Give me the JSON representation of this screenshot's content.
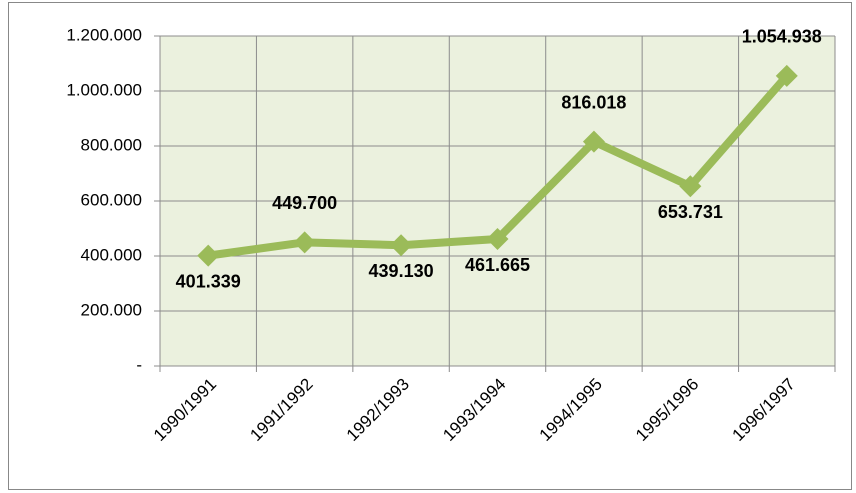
{
  "chart_data": {
    "type": "line",
    "categories": [
      "1990/1991",
      "1991/1992",
      "1992/1993",
      "1993/1994",
      "1994/1995",
      "1995/1996",
      "1996/1997"
    ],
    "values": [
      401339,
      449700,
      439130,
      461665,
      816018,
      653731,
      1054938
    ],
    "value_labels": [
      "401.339",
      "449.700",
      "439.130",
      "461.665",
      "816.018",
      "653.731",
      "1.054.938"
    ],
    "color": "#9bbb59",
    "ylim": [
      0,
      1200000
    ],
    "yticks": [
      {
        "value": 0,
        "label": "-"
      },
      {
        "value": 200000,
        "label": "200.000"
      },
      {
        "value": 400000,
        "label": "400.000"
      },
      {
        "value": 600000,
        "label": "600.000"
      },
      {
        "value": 800000,
        "label": "800.000"
      },
      {
        "value": 1000000,
        "label": "1.000.000"
      },
      {
        "value": 1200000,
        "label": "1.200.000"
      }
    ],
    "grid": true
  }
}
